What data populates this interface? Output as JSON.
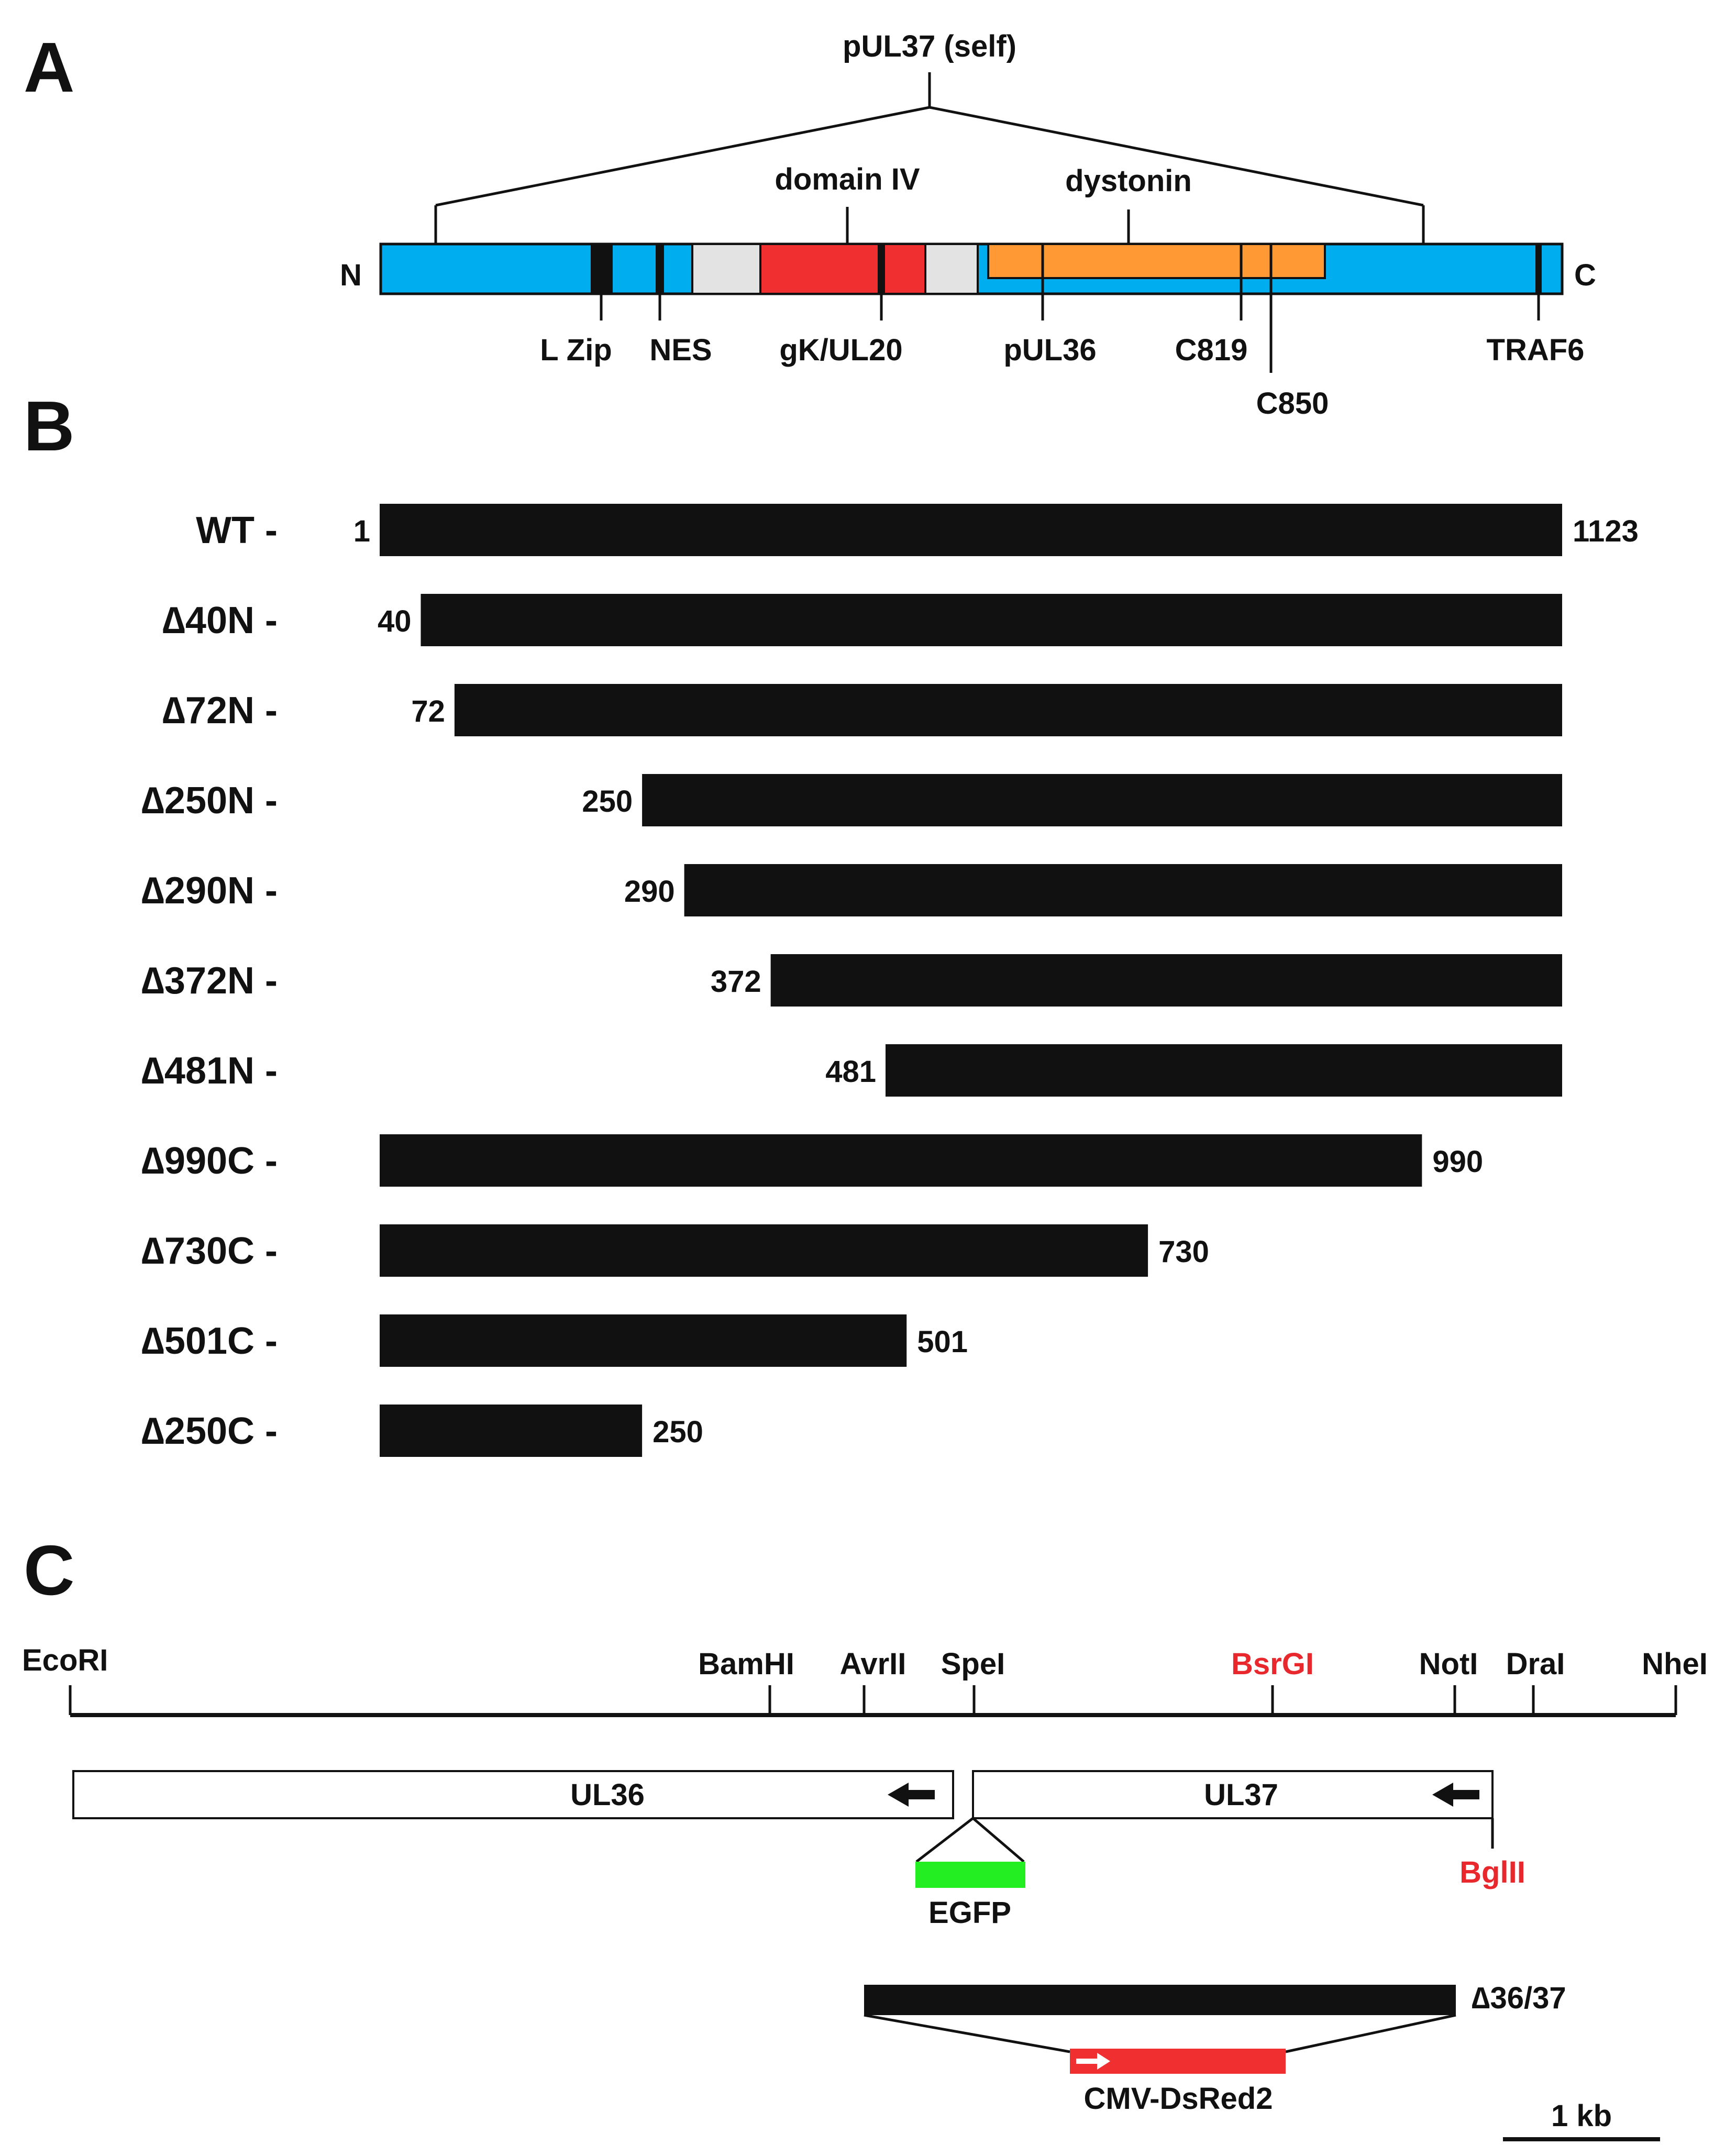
{
  "panel_a": {
    "letter": "A",
    "self_label": "pUL37 (self)",
    "domain_iv_label": "domain IV",
    "dystonin_label": "dystonin",
    "n_term": "N",
    "c_term": "C",
    "motifs": [
      "L Zip",
      "NES",
      "gK/UL20",
      "pUL36",
      "C819",
      "C850",
      "TRAF6"
    ],
    "colors": {
      "protein": "#00aeef",
      "domain_iv": "#f03030",
      "grey_region": "#e3e3e3",
      "dystonin": "#ff9933",
      "motif": "#111111"
    }
  },
  "panel_b": {
    "letter": "B",
    "max_residue": 1123,
    "constructs": [
      {
        "name": "WT -",
        "start": 1,
        "end": 1123,
        "start_label": "1",
        "end_label": "1123"
      },
      {
        "name": "∆40N -",
        "start": 40,
        "end": 1123,
        "start_label": "40",
        "end_label": ""
      },
      {
        "name": "∆72N -",
        "start": 72,
        "end": 1123,
        "start_label": "72",
        "end_label": ""
      },
      {
        "name": "∆250N -",
        "start": 250,
        "end": 1123,
        "start_label": "250",
        "end_label": ""
      },
      {
        "name": "∆290N -",
        "start": 290,
        "end": 1123,
        "start_label": "290",
        "end_label": ""
      },
      {
        "name": "∆372N -",
        "start": 372,
        "end": 1123,
        "start_label": "372",
        "end_label": ""
      },
      {
        "name": "∆481N -",
        "start": 481,
        "end": 1123,
        "start_label": "481",
        "end_label": ""
      },
      {
        "name": "∆990C -",
        "start": 1,
        "end": 990,
        "start_label": "",
        "end_label": "990"
      },
      {
        "name": "∆730C -",
        "start": 1,
        "end": 730,
        "start_label": "",
        "end_label": "730"
      },
      {
        "name": "∆501C -",
        "start": 1,
        "end": 501,
        "start_label": "",
        "end_label": "501"
      },
      {
        "name": "∆250C -",
        "start": 1,
        "end": 250,
        "start_label": "",
        "end_label": "250"
      }
    ]
  },
  "panel_c": {
    "letter": "C",
    "sites": [
      "EcoRI",
      "BamHI",
      "AvrII",
      "SpeI",
      "BsrGI",
      "NotI",
      "DraI",
      "NheI"
    ],
    "red_sites": [
      "BsrGI",
      "BglII"
    ],
    "ul36": "UL36",
    "ul37": "UL37",
    "bglii": "BglII",
    "egfp": "EGFP",
    "deletion": "∆36/37",
    "cassette": "CMV-DsRed2",
    "scale": "1 kb",
    "colors": {
      "egfp": "#22ee22",
      "dsred": "#f03030",
      "red_text": "#e8282d"
    }
  }
}
